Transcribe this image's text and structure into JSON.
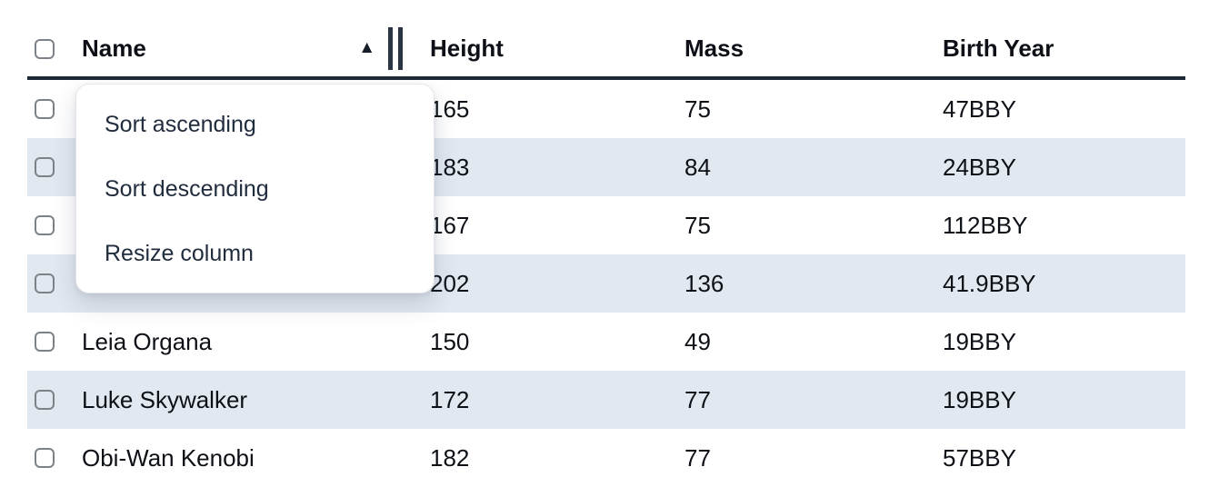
{
  "table": {
    "columns": [
      {
        "label": "Name",
        "sort": "ascending"
      },
      {
        "label": "Height",
        "sort": null
      },
      {
        "label": "Mass",
        "sort": null
      },
      {
        "label": "Birth Year",
        "sort": null
      }
    ],
    "rows": [
      {
        "name": "",
        "height": "165",
        "mass": "75",
        "birth_year": "47BBY"
      },
      {
        "name": "",
        "height": "183",
        "mass": "84",
        "birth_year": "24BBY"
      },
      {
        "name": "",
        "height": "167",
        "mass": "75",
        "birth_year": "112BBY"
      },
      {
        "name": "",
        "height": "202",
        "mass": "136",
        "birth_year": "41.9BBY"
      },
      {
        "name": "Leia Organa",
        "height": "150",
        "mass": "49",
        "birth_year": "19BBY"
      },
      {
        "name": "Luke Skywalker",
        "height": "172",
        "mass": "77",
        "birth_year": "19BBY"
      },
      {
        "name": "Obi-Wan Kenobi",
        "height": "182",
        "mass": "77",
        "birth_year": "57BBY"
      }
    ]
  },
  "context_menu": {
    "items": [
      "Sort ascending",
      "Sort descending",
      "Resize column"
    ]
  },
  "icons": {
    "sort_ascending": "▲",
    "column_resize": "double-bar-drag-handle"
  },
  "colors": {
    "row_stripe": "#e2e8f0",
    "header_underline": "#1e2936",
    "table_text": "#0d1117",
    "menu_text": "#212c3d",
    "checkbox_border": "#7d8289"
  }
}
